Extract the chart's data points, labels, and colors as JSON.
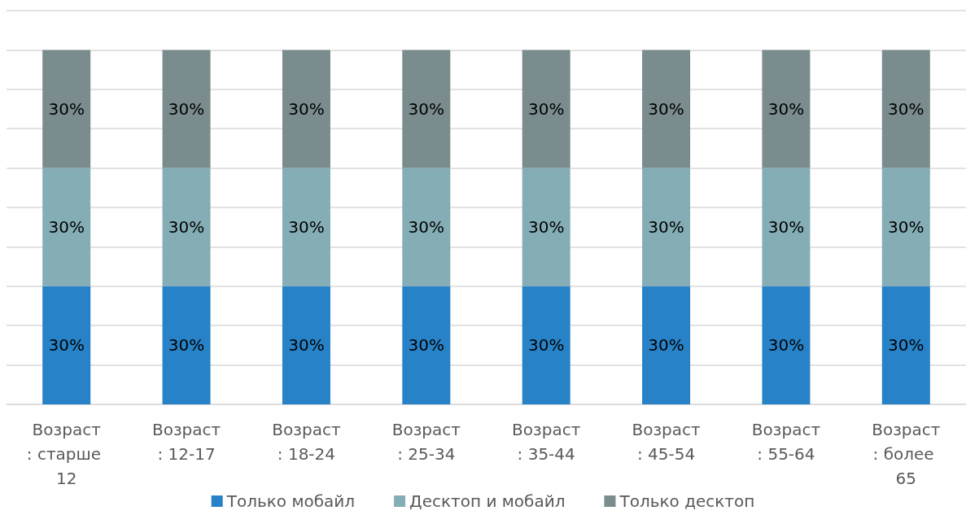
{
  "chart_data": {
    "type": "bar",
    "stacked": true,
    "categories": [
      "Возраст: старше 12",
      "Возраст: 12-17",
      "Возраст: 18-24",
      "Возраст: 25-34",
      "Возраст: 35-44",
      "Возраст: 45-54",
      "Возраст: 55-64",
      "Возраст: более 65"
    ],
    "series": [
      {
        "name": "Только мобайл",
        "color": "#2782c8",
        "values": [
          30,
          30,
          30,
          30,
          30,
          30,
          30,
          30
        ],
        "value_labels": [
          "30%",
          "30%",
          "30%",
          "30%",
          "30%",
          "30%",
          "30%",
          "30%"
        ]
      },
      {
        "name": "Десктоп и мобайл",
        "color": "#84adb5",
        "values": [
          30,
          30,
          30,
          30,
          30,
          30,
          30,
          30
        ],
        "value_labels": [
          "30%",
          "30%",
          "30%",
          "30%",
          "30%",
          "30%",
          "30%",
          "30%"
        ]
      },
      {
        "name": "Только десктоп",
        "color": "#7a8c8d",
        "values": [
          30,
          30,
          30,
          30,
          30,
          30,
          30,
          30
        ],
        "value_labels": [
          "30%",
          "30%",
          "30%",
          "30%",
          "30%",
          "30%",
          "30%",
          "30%"
        ]
      }
    ],
    "ylim": [
      0,
      100
    ],
    "yticks": [
      {
        "value": 0,
        "label": null
      },
      {
        "value": 10,
        "label": null
      },
      {
        "value": 20,
        "label": null
      },
      {
        "value": 30,
        "label": null
      },
      {
        "value": 40,
        "label": null
      },
      {
        "value": 50,
        "label": null
      },
      {
        "value": 60,
        "label": null
      },
      {
        "value": 70,
        "label": null
      },
      {
        "value": 80,
        "label": null
      },
      {
        "value": 90,
        "label": null
      },
      {
        "value": 100,
        "label": null
      }
    ],
    "tick_labels": "x",
    "grid": "y",
    "legend": "bottom"
  }
}
